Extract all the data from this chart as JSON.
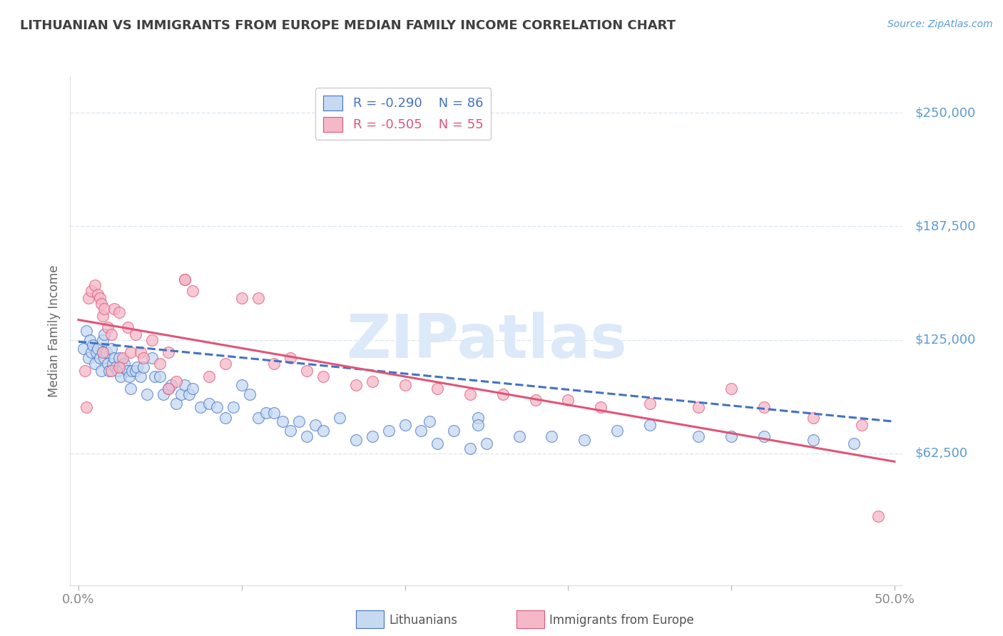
{
  "title": "LITHUANIAN VS IMMIGRANTS FROM EUROPE MEDIAN FAMILY INCOME CORRELATION CHART",
  "source": "Source: ZipAtlas.com",
  "ylabel": "Median Family Income",
  "ytick_labels": [
    "$250,000",
    "$187,500",
    "$125,000",
    "$62,500"
  ],
  "ytick_values": [
    250000,
    187500,
    125000,
    62500
  ],
  "ylim": [
    -10000,
    270000
  ],
  "xlim": [
    -0.005,
    0.505
  ],
  "legend_blue_r": "-0.290",
  "legend_blue_n": "86",
  "legend_pink_r": "-0.505",
  "legend_pink_n": "55",
  "legend_label_blue": "Lithuanians",
  "legend_label_pink": "Immigrants from Europe",
  "blue_fill": "#c5d9f1",
  "pink_fill": "#f4b8c8",
  "line_blue": "#4472c4",
  "line_pink": "#e05577",
  "ytick_color": "#5b9bd5",
  "title_color": "#404040",
  "blue_scatter_x": [
    0.003,
    0.005,
    0.006,
    0.007,
    0.008,
    0.009,
    0.01,
    0.011,
    0.012,
    0.013,
    0.014,
    0.015,
    0.015,
    0.016,
    0.016,
    0.017,
    0.018,
    0.019,
    0.02,
    0.021,
    0.022,
    0.023,
    0.024,
    0.025,
    0.026,
    0.027,
    0.028,
    0.03,
    0.031,
    0.032,
    0.033,
    0.035,
    0.036,
    0.038,
    0.04,
    0.042,
    0.045,
    0.047,
    0.05,
    0.052,
    0.055,
    0.057,
    0.06,
    0.063,
    0.065,
    0.068,
    0.07,
    0.075,
    0.08,
    0.085,
    0.09,
    0.095,
    0.1,
    0.105,
    0.11,
    0.115,
    0.12,
    0.125,
    0.13,
    0.135,
    0.14,
    0.145,
    0.15,
    0.16,
    0.17,
    0.18,
    0.19,
    0.2,
    0.21,
    0.215,
    0.22,
    0.23,
    0.24,
    0.25,
    0.27,
    0.29,
    0.31,
    0.33,
    0.35,
    0.38,
    0.4,
    0.42,
    0.45,
    0.475,
    0.245,
    0.245
  ],
  "blue_scatter_y": [
    120000,
    130000,
    115000,
    125000,
    118000,
    122000,
    112000,
    118000,
    120000,
    115000,
    108000,
    125000,
    118000,
    128000,
    115000,
    118000,
    112000,
    108000,
    120000,
    112000,
    115000,
    110000,
    108000,
    115000,
    105000,
    110000,
    112000,
    108000,
    105000,
    98000,
    108000,
    108000,
    110000,
    105000,
    110000,
    95000,
    115000,
    105000,
    105000,
    95000,
    98000,
    100000,
    90000,
    95000,
    100000,
    95000,
    98000,
    88000,
    90000,
    88000,
    82000,
    88000,
    100000,
    95000,
    82000,
    85000,
    85000,
    80000,
    75000,
    80000,
    72000,
    78000,
    75000,
    82000,
    70000,
    72000,
    75000,
    78000,
    75000,
    80000,
    68000,
    75000,
    65000,
    68000,
    72000,
    72000,
    70000,
    75000,
    78000,
    72000,
    72000,
    72000,
    70000,
    68000,
    82000,
    78000
  ],
  "pink_scatter_x": [
    0.004,
    0.006,
    0.008,
    0.01,
    0.012,
    0.013,
    0.014,
    0.015,
    0.016,
    0.018,
    0.02,
    0.022,
    0.025,
    0.027,
    0.03,
    0.032,
    0.035,
    0.038,
    0.04,
    0.045,
    0.05,
    0.055,
    0.06,
    0.065,
    0.07,
    0.08,
    0.09,
    0.1,
    0.11,
    0.12,
    0.13,
    0.14,
    0.15,
    0.17,
    0.18,
    0.2,
    0.22,
    0.24,
    0.26,
    0.28,
    0.3,
    0.32,
    0.35,
    0.38,
    0.4,
    0.42,
    0.45,
    0.48,
    0.005,
    0.015,
    0.02,
    0.025,
    0.055,
    0.065,
    0.49
  ],
  "pink_scatter_y": [
    108000,
    148000,
    152000,
    155000,
    150000,
    148000,
    145000,
    138000,
    142000,
    132000,
    128000,
    142000,
    140000,
    115000,
    132000,
    118000,
    128000,
    118000,
    115000,
    125000,
    112000,
    118000,
    102000,
    158000,
    152000,
    105000,
    112000,
    148000,
    148000,
    112000,
    115000,
    108000,
    105000,
    100000,
    102000,
    100000,
    98000,
    95000,
    95000,
    92000,
    92000,
    88000,
    90000,
    88000,
    98000,
    88000,
    82000,
    78000,
    88000,
    118000,
    108000,
    110000,
    98000,
    158000,
    28000
  ],
  "blue_line_x": [
    0.0,
    0.5
  ],
  "blue_line_y": [
    124000,
    80000
  ],
  "pink_line_x": [
    0.0,
    0.5
  ],
  "pink_line_y": [
    136000,
    58000
  ],
  "grid_color": "#dce6f1",
  "background_color": "#ffffff",
  "watermark_color": "#dce9f8"
}
